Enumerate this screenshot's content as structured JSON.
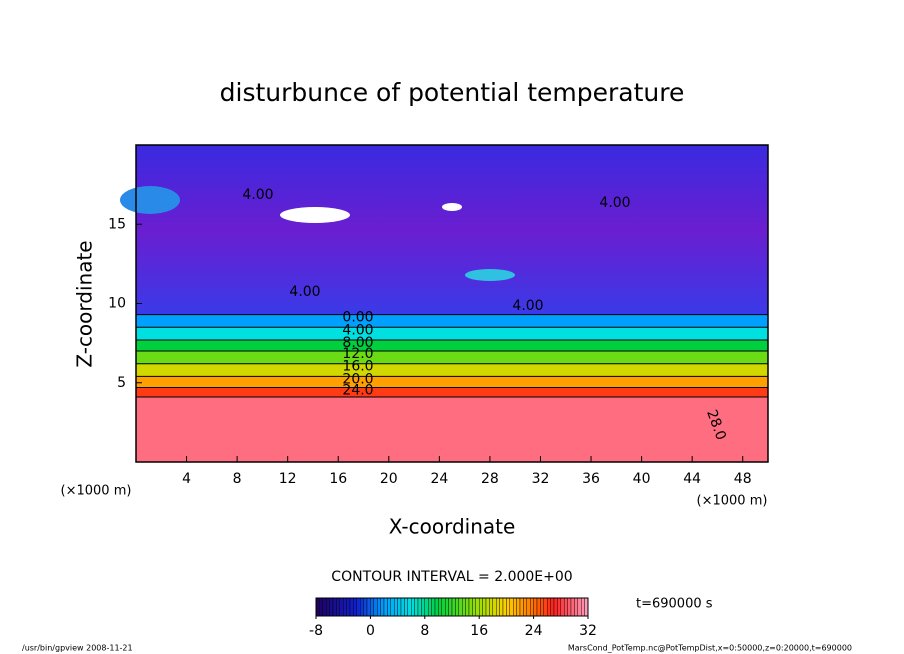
{
  "chart_data": {
    "type": "contour",
    "title": "disturbunce of potential temperature",
    "x_label": "X-coordinate",
    "y_label": "Z-coordinate",
    "x_unit": "(×1000 m)",
    "y_unit": "(×1000 m)",
    "xlim": [
      0,
      50
    ],
    "ylim": [
      0,
      20
    ],
    "xticks": [
      4,
      8,
      12,
      16,
      20,
      24,
      28,
      32,
      36,
      40,
      44,
      48
    ],
    "yticks": [
      5,
      10,
      15
    ],
    "levels": [
      {
        "value": 0,
        "label": "0.00"
      },
      {
        "value": 4,
        "label": "4.00"
      },
      {
        "value": 8,
        "label": "8.00"
      },
      {
        "value": 12,
        "label": "12.0"
      },
      {
        "value": 16,
        "label": "16.0"
      },
      {
        "value": 20,
        "label": "20.0"
      },
      {
        "value": 24,
        "label": "24.0"
      },
      {
        "value": 28,
        "label": "28.0"
      }
    ],
    "level_heights": [
      9.3,
      8.5,
      7.7,
      7.0,
      6.2,
      5.4,
      4.7,
      4.1
    ],
    "upper_labels": [
      "4.00",
      "4.00",
      "4.00",
      "4.00"
    ],
    "contour_interval": "CONTOUR INTERVAL = 2.000E+00",
    "colorbar": {
      "lim": [
        -8,
        32
      ],
      "ticks": [
        -8,
        0,
        8,
        16,
        24,
        32
      ]
    },
    "time_label": "t=690000 s",
    "footer_left": "/usr/bin/gpview   2008-11-21",
    "footer_right": "MarsCond_PotTemp.nc@PotTempDist,x=0:50000,z=0:20000,t=690000"
  }
}
